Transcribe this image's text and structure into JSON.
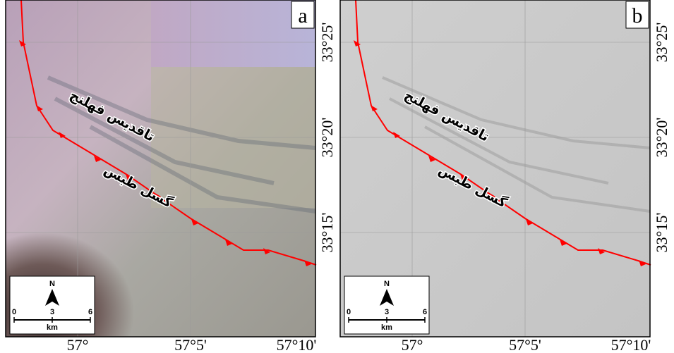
{
  "panels": [
    {
      "letter": "a",
      "anticline_label": "تاقدیس فهلنج",
      "fault_label": "گسل طبس",
      "x_labels": [
        "57°",
        "57°5'",
        "57°10'"
      ],
      "y_labels": [
        "33°25'",
        "33°20'",
        "33°15'"
      ],
      "scale_ticks": [
        0,
        3,
        6
      ],
      "scale_unit": "km",
      "north": "N"
    },
    {
      "letter": "b",
      "anticline_label": "تاقدیس فهلنج",
      "fault_label": "گسل طبس",
      "x_labels": [
        "57°",
        "57°5'",
        "57°10'"
      ],
      "y_labels": [
        "33°25'",
        "33°20'",
        "33°15'"
      ],
      "scale_ticks": [
        0,
        3,
        6
      ],
      "scale_unit": "km",
      "north": "N"
    }
  ]
}
